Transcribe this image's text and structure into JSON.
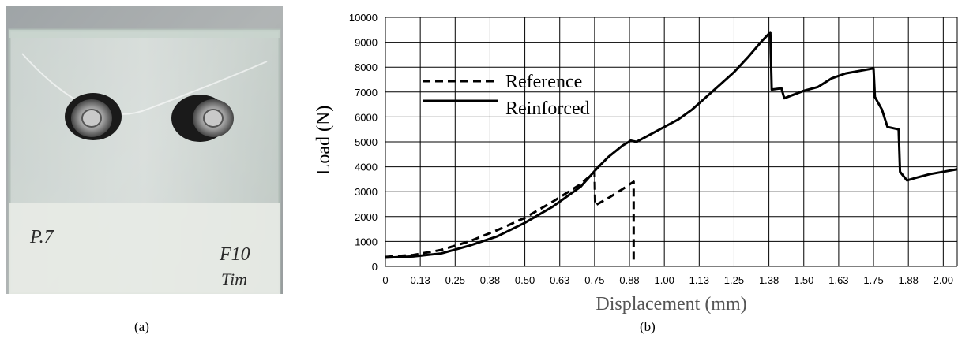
{
  "panels": {
    "a": {
      "caption": "(a)",
      "photo": {
        "label_left": "P.7",
        "label_right_line1": "F10",
        "label_right_line2": "Tim"
      }
    },
    "b": {
      "caption": "(b)"
    }
  },
  "chart_data": {
    "type": "line",
    "xlabel": "Displacement (mm)",
    "ylabel": "Load (N)",
    "xlim": [
      0,
      2.05
    ],
    "ylim": [
      0,
      10000
    ],
    "x_tick_labels": [
      "0",
      "0.13",
      "0.25",
      "0.38",
      "0.50",
      "0.63",
      "0.75",
      "0.88",
      "1.00",
      "1.13",
      "1.25",
      "1.38",
      "1.50",
      "1.63",
      "1.75",
      "1.88",
      "2.00"
    ],
    "y_ticks": [
      0,
      1000,
      2000,
      3000,
      4000,
      5000,
      6000,
      7000,
      8000,
      9000,
      10000
    ],
    "grid": true,
    "legend_position": "top-left",
    "series": [
      {
        "name": "Reference",
        "style": "dashed",
        "color": "#000000",
        "points": [
          [
            0,
            380
          ],
          [
            0.1,
            460
          ],
          [
            0.2,
            660
          ],
          [
            0.3,
            1000
          ],
          [
            0.4,
            1450
          ],
          [
            0.5,
            1950
          ],
          [
            0.6,
            2600
          ],
          [
            0.7,
            3300
          ],
          [
            0.75,
            3800
          ],
          [
            0.752,
            2450
          ],
          [
            0.8,
            2750
          ],
          [
            0.85,
            3100
          ],
          [
            0.89,
            3400
          ],
          [
            0.89,
            200
          ]
        ]
      },
      {
        "name": "Reinforced",
        "style": "solid",
        "color": "#000000",
        "points": [
          [
            0,
            350
          ],
          [
            0.1,
            400
          ],
          [
            0.2,
            520
          ],
          [
            0.3,
            830
          ],
          [
            0.4,
            1200
          ],
          [
            0.5,
            1750
          ],
          [
            0.6,
            2400
          ],
          [
            0.7,
            3200
          ],
          [
            0.76,
            3950
          ],
          [
            0.8,
            4400
          ],
          [
            0.85,
            4850
          ],
          [
            0.88,
            5050
          ],
          [
            0.9,
            5000
          ],
          [
            0.95,
            5300
          ],
          [
            1.0,
            5600
          ],
          [
            1.05,
            5900
          ],
          [
            1.1,
            6300
          ],
          [
            1.15,
            6800
          ],
          [
            1.2,
            7300
          ],
          [
            1.25,
            7800
          ],
          [
            1.3,
            8400
          ],
          [
            1.35,
            9050
          ],
          [
            1.38,
            9400
          ],
          [
            1.385,
            7100
          ],
          [
            1.42,
            7150
          ],
          [
            1.43,
            6750
          ],
          [
            1.5,
            7050
          ],
          [
            1.55,
            7200
          ],
          [
            1.6,
            7550
          ],
          [
            1.65,
            7750
          ],
          [
            1.7,
            7850
          ],
          [
            1.75,
            7950
          ],
          [
            1.755,
            6800
          ],
          [
            1.78,
            6300
          ],
          [
            1.8,
            5600
          ],
          [
            1.84,
            5500
          ],
          [
            1.845,
            3800
          ],
          [
            1.87,
            3450
          ],
          [
            1.9,
            3550
          ],
          [
            1.95,
            3700
          ],
          [
            2.0,
            3800
          ],
          [
            2.05,
            3900
          ]
        ]
      }
    ]
  }
}
